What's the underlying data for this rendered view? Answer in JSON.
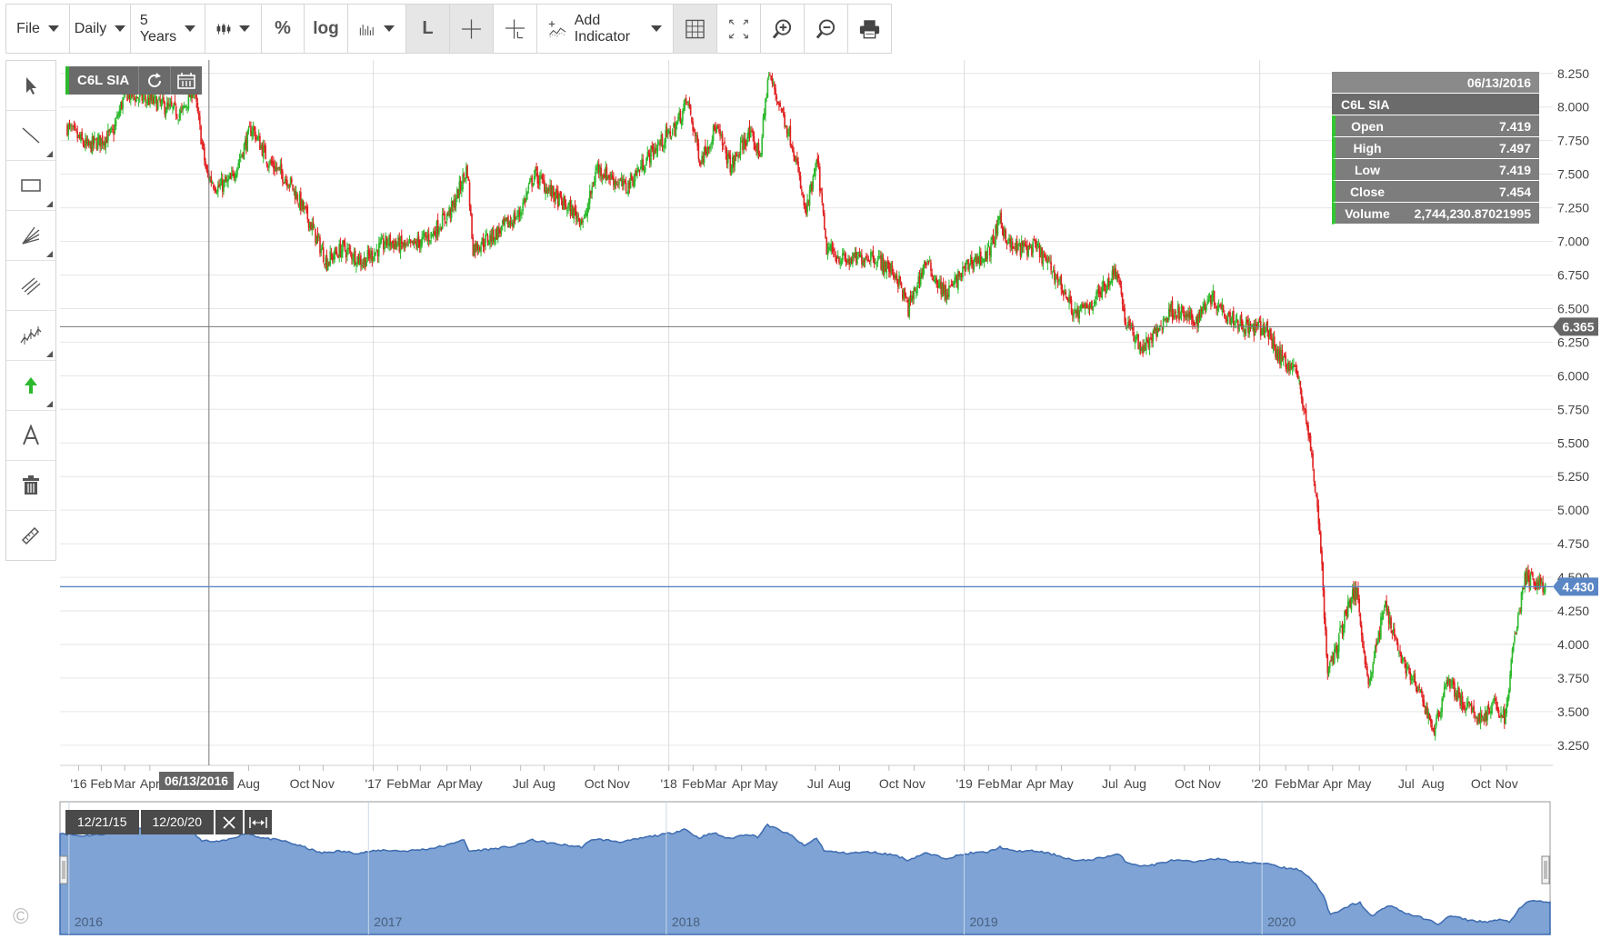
{
  "toolbar": {
    "file": "File",
    "period": "Daily",
    "range": "5 Years",
    "percent": "%",
    "log": "log",
    "line_mode": "L",
    "add_indicator": "Add Indicator"
  },
  "symbol_badge": "C6L SIA",
  "crosshair_date_label": "06/13/2016",
  "databox": {
    "date": "06/13/2016",
    "symbol": "C6L SIA",
    "rows": [
      {
        "label": "Open",
        "value": "7.419"
      },
      {
        "label": "High",
        "value": "7.497"
      },
      {
        "label": "Low",
        "value": "7.419"
      },
      {
        "label": "Close",
        "value": "7.454"
      },
      {
        "label": "Volume",
        "value": "2,744,230.87021995"
      }
    ]
  },
  "navigator": {
    "start_label": "12/21/15",
    "end_label": "12/20/20",
    "year_labels": [
      "2016",
      "2017",
      "2018",
      "2019",
      "2020"
    ]
  },
  "copyright_symbol": "©",
  "colors": {
    "up": "#2db92d",
    "down": "#e02020",
    "last_price_line": "#5b86c5",
    "crosshair_line": "#777777",
    "area_fill": "#7ea3d4",
    "area_stroke": "#3d6bb0",
    "price_tag_last": "#5b86c5",
    "price_tag_cross": "#666666",
    "grid": "#e6e6e6"
  },
  "chart_data": {
    "type": "candlestick",
    "symbol": "C6L SIA",
    "interval": "Daily",
    "range": "5 Years",
    "x_start": "2015-12-21",
    "x_end": "2020-12-20",
    "ylim": [
      3.1,
      8.35
    ],
    "y_ticks": [
      "8.250",
      "8.000",
      "7.750",
      "7.500",
      "7.250",
      "7.000",
      "6.750",
      "6.500",
      "6.250",
      "6.000",
      "5.750",
      "5.500",
      "5.250",
      "5.000",
      "4.750",
      "4.500",
      "4.250",
      "4.000",
      "3.750",
      "3.500",
      "3.250"
    ],
    "x_tick_labels": [
      {
        "date": "2016-01-04",
        "label": "'16"
      },
      {
        "date": "2016-02-01",
        "label": "Feb"
      },
      {
        "date": "2016-03-01",
        "label": "Mar"
      },
      {
        "date": "2016-04-01",
        "label": "Apr"
      },
      {
        "date": "2016-08-01",
        "label": "Aug"
      },
      {
        "date": "2016-10-03",
        "label": "Oct"
      },
      {
        "date": "2016-11-01",
        "label": "Nov"
      },
      {
        "date": "2017-01-02",
        "label": "'17"
      },
      {
        "date": "2017-02-01",
        "label": "Feb"
      },
      {
        "date": "2017-03-01",
        "label": "Mar"
      },
      {
        "date": "2017-04-03",
        "label": "Apr"
      },
      {
        "date": "2017-05-02",
        "label": "May"
      },
      {
        "date": "2017-07-03",
        "label": "Jul"
      },
      {
        "date": "2017-08-01",
        "label": "Aug"
      },
      {
        "date": "2017-10-02",
        "label": "Oct"
      },
      {
        "date": "2017-11-01",
        "label": "Nov"
      },
      {
        "date": "2018-01-02",
        "label": "'18"
      },
      {
        "date": "2018-02-01",
        "label": "Feb"
      },
      {
        "date": "2018-03-01",
        "label": "Mar"
      },
      {
        "date": "2018-04-02",
        "label": "Apr"
      },
      {
        "date": "2018-05-02",
        "label": "May"
      },
      {
        "date": "2018-07-02",
        "label": "Jul"
      },
      {
        "date": "2018-08-01",
        "label": "Aug"
      },
      {
        "date": "2018-10-01",
        "label": "Oct"
      },
      {
        "date": "2018-11-01",
        "label": "Nov"
      },
      {
        "date": "2019-01-02",
        "label": "'19"
      },
      {
        "date": "2019-02-01",
        "label": "Feb"
      },
      {
        "date": "2019-03-01",
        "label": "Mar"
      },
      {
        "date": "2019-04-01",
        "label": "Apr"
      },
      {
        "date": "2019-05-02",
        "label": "May"
      },
      {
        "date": "2019-07-01",
        "label": "Jul"
      },
      {
        "date": "2019-08-01",
        "label": "Aug"
      },
      {
        "date": "2019-10-01",
        "label": "Oct"
      },
      {
        "date": "2019-11-01",
        "label": "Nov"
      },
      {
        "date": "2020-01-02",
        "label": "'20"
      },
      {
        "date": "2020-02-03",
        "label": "Feb"
      },
      {
        "date": "2020-03-02",
        "label": "Mar"
      },
      {
        "date": "2020-04-01",
        "label": "Apr"
      },
      {
        "date": "2020-05-04",
        "label": "May"
      },
      {
        "date": "2020-07-01",
        "label": "Jul"
      },
      {
        "date": "2020-08-03",
        "label": "Aug"
      },
      {
        "date": "2020-10-01",
        "label": "Oct"
      },
      {
        "date": "2020-11-02",
        "label": "Nov"
      }
    ],
    "year_lines": [
      "2017-01-02",
      "2018-01-02",
      "2019-01-02",
      "2020-01-02"
    ],
    "crosshair": {
      "date": "2016-06-13",
      "price": 6.365
    },
    "last_price": 4.43,
    "price_tags": [
      {
        "value": 6.365,
        "label": "6.365",
        "kind": "cross"
      },
      {
        "value": 4.43,
        "label": "4.430",
        "kind": "last"
      }
    ],
    "close_path": [
      [
        "2015-12-21",
        7.85
      ],
      [
        "2016-01-15",
        7.7
      ],
      [
        "2016-02-15",
        7.8
      ],
      [
        "2016-03-01",
        8.1
      ],
      [
        "2016-04-01",
        8.05
      ],
      [
        "2016-05-10",
        7.95
      ],
      [
        "2016-05-25",
        8.15
      ],
      [
        "2016-06-10",
        7.5
      ],
      [
        "2016-06-24",
        7.4
      ],
      [
        "2016-07-10",
        7.45
      ],
      [
        "2016-08-05",
        7.85
      ],
      [
        "2016-08-25",
        7.6
      ],
      [
        "2016-09-20",
        7.45
      ],
      [
        "2016-10-15",
        7.15
      ],
      [
        "2016-11-05",
        6.85
      ],
      [
        "2016-11-25",
        6.95
      ],
      [
        "2016-12-20",
        6.85
      ],
      [
        "2017-01-20",
        7.0
      ],
      [
        "2017-02-15",
        6.95
      ],
      [
        "2017-03-15",
        7.05
      ],
      [
        "2017-04-10",
        7.25
      ],
      [
        "2017-04-28",
        7.55
      ],
      [
        "2017-05-05",
        6.95
      ],
      [
        "2017-06-01",
        7.05
      ],
      [
        "2017-07-01",
        7.2
      ],
      [
        "2017-07-20",
        7.5
      ],
      [
        "2017-08-20",
        7.3
      ],
      [
        "2017-09-20",
        7.15
      ],
      [
        "2017-10-05",
        7.55
      ],
      [
        "2017-11-10",
        7.4
      ],
      [
        "2017-12-10",
        7.65
      ],
      [
        "2018-01-10",
        7.85
      ],
      [
        "2018-01-25",
        8.05
      ],
      [
        "2018-02-10",
        7.6
      ],
      [
        "2018-03-01",
        7.85
      ],
      [
        "2018-03-20",
        7.55
      ],
      [
        "2018-04-10",
        7.8
      ],
      [
        "2018-04-25",
        7.65
      ],
      [
        "2018-05-05",
        8.25
      ],
      [
        "2018-05-20",
        8.0
      ],
      [
        "2018-06-05",
        7.7
      ],
      [
        "2018-06-20",
        7.2
      ],
      [
        "2018-07-05",
        7.6
      ],
      [
        "2018-07-15",
        6.95
      ],
      [
        "2018-08-10",
        6.85
      ],
      [
        "2018-09-10",
        6.9
      ],
      [
        "2018-10-10",
        6.75
      ],
      [
        "2018-10-25",
        6.5
      ],
      [
        "2018-11-15",
        6.85
      ],
      [
        "2018-12-10",
        6.6
      ],
      [
        "2019-01-10",
        6.85
      ],
      [
        "2019-01-31",
        6.9
      ],
      [
        "2019-02-15",
        7.15
      ],
      [
        "2019-03-01",
        6.95
      ],
      [
        "2019-04-01",
        6.95
      ],
      [
        "2019-04-25",
        6.75
      ],
      [
        "2019-05-20",
        6.45
      ],
      [
        "2019-06-10",
        6.55
      ],
      [
        "2019-07-10",
        6.8
      ],
      [
        "2019-07-20",
        6.4
      ],
      [
        "2019-08-10",
        6.2
      ],
      [
        "2019-08-25",
        6.3
      ],
      [
        "2019-09-15",
        6.5
      ],
      [
        "2019-10-15",
        6.4
      ],
      [
        "2019-11-01",
        6.6
      ],
      [
        "2019-11-25",
        6.45
      ],
      [
        "2019-12-20",
        6.35
      ],
      [
        "2020-01-10",
        6.35
      ],
      [
        "2020-01-25",
        6.15
      ],
      [
        "2020-02-15",
        6.05
      ],
      [
        "2020-02-28",
        5.7
      ],
      [
        "2020-03-10",
        5.2
      ],
      [
        "2020-03-18",
        4.7
      ],
      [
        "2020-03-25",
        3.8
      ],
      [
        "2020-04-05",
        3.95
      ],
      [
        "2020-04-20",
        4.3
      ],
      [
        "2020-05-01",
        4.4
      ],
      [
        "2020-05-15",
        3.7
      ],
      [
        "2020-06-05",
        4.3
      ],
      [
        "2020-06-25",
        3.9
      ],
      [
        "2020-07-20",
        3.6
      ],
      [
        "2020-08-05",
        3.35
      ],
      [
        "2020-08-20",
        3.75
      ],
      [
        "2020-09-10",
        3.55
      ],
      [
        "2020-09-30",
        3.45
      ],
      [
        "2020-10-20",
        3.55
      ],
      [
        "2020-11-01",
        3.45
      ],
      [
        "2020-11-10",
        4.0
      ],
      [
        "2020-11-25",
        4.5
      ],
      [
        "2020-12-20",
        4.43
      ]
    ]
  }
}
